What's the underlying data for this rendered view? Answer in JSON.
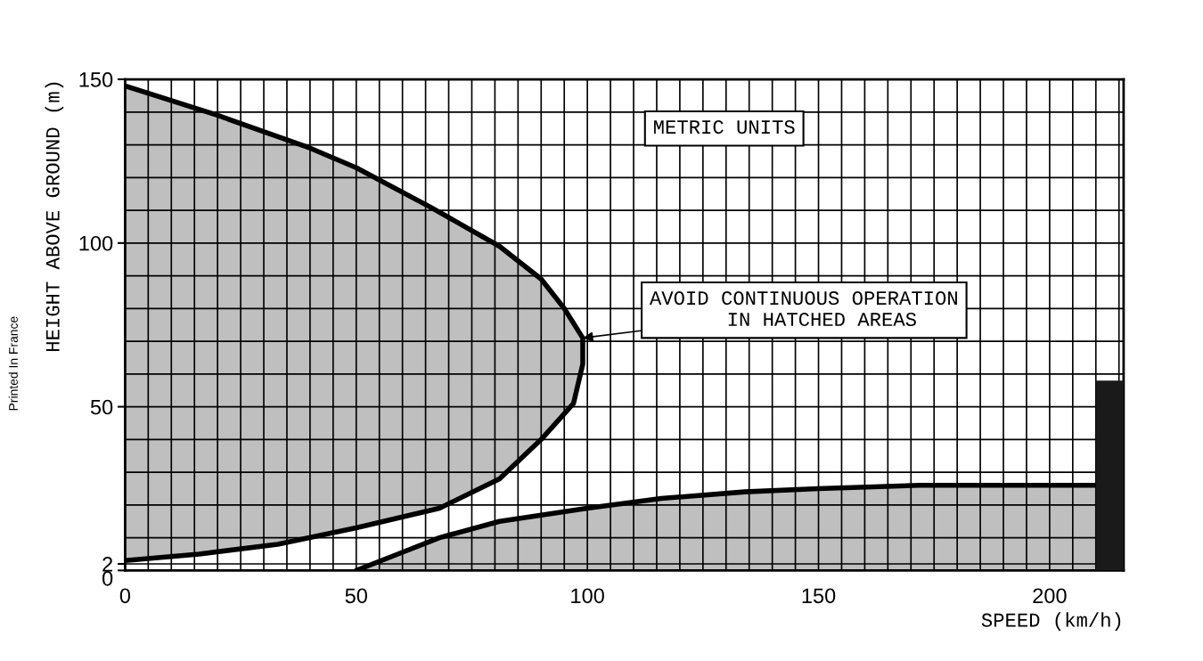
{
  "chart_data": {
    "type": "area",
    "xlabel": "SPEED (km/h)",
    "ylabel": "HEIGHT ABOVE GROUND (m)",
    "xlim": [
      0,
      216
    ],
    "ylim": [
      0,
      150
    ],
    "xticks": [
      0,
      50,
      100,
      150,
      200
    ],
    "yticks": [
      0,
      2,
      50,
      100,
      150
    ],
    "grid": true,
    "legend": false,
    "series": [
      {
        "color": "#b4b4b4",
        "x": [
          0,
          20,
          40,
          50,
          66,
          81,
          90,
          95,
          99,
          99,
          97,
          90,
          81,
          68,
          50,
          33,
          16,
          0
        ],
        "values": [
          148,
          139,
          129,
          123,
          111,
          99,
          89,
          80,
          71,
          63,
          51,
          40,
          28,
          19,
          13,
          8,
          5,
          3
        ]
      },
      {
        "color": "#b4b4b4",
        "x": [
          50,
          59,
          68,
          81,
          100,
          116,
          134,
          150,
          172,
          210
        ],
        "values": [
          0,
          5,
          10,
          15,
          19,
          22,
          24,
          25,
          26,
          26
        ]
      },
      {
        "type": "bar",
        "color": "#1a1a1a",
        "x": [
          213
        ],
        "values": [
          58
        ]
      }
    ],
    "annotations": [
      {
        "text": "AVOID CONTINUOUS OPERATION\n   IN HATCHED AREAS",
        "x": 99,
        "y": 71
      },
      "METRIC UNITS",
      "Printed In France"
    ]
  }
}
